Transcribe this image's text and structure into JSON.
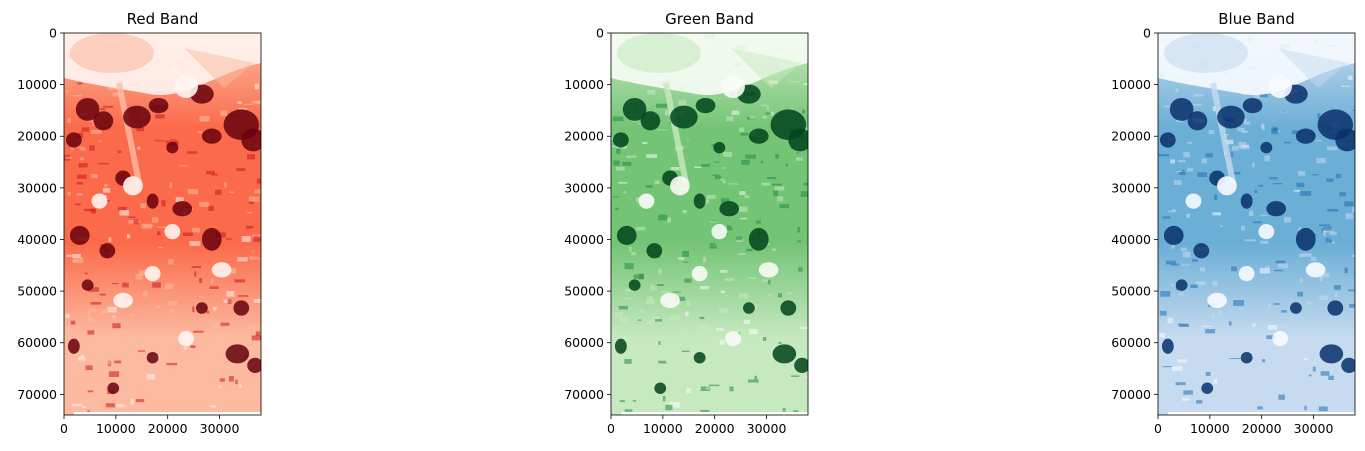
{
  "chart_data": [
    {
      "type": "heatmap",
      "title": "Red Band",
      "colormap": "Reds",
      "colors": [
        "#fff5f0",
        "#fcbba1",
        "#fb6a4a",
        "#cb181d",
        "#67000d"
      ],
      "xlim": [
        0,
        38000
      ],
      "ylim": [
        74000,
        0
      ],
      "x_ticks": [
        0,
        10000,
        20000,
        30000
      ],
      "y_ticks": [
        0,
        10000,
        20000,
        30000,
        40000,
        50000,
        60000,
        70000
      ],
      "x_tick_labels": [
        "0",
        "10000",
        "20000",
        "30000"
      ],
      "y_tick_labels": [
        "0",
        "10000",
        "20000",
        "30000",
        "40000",
        "50000",
        "60000",
        "70000"
      ]
    },
    {
      "type": "heatmap",
      "title": "Green Band",
      "colormap": "Greens",
      "colors": [
        "#f7fcf5",
        "#c7e9c0",
        "#74c476",
        "#238b45",
        "#00441b"
      ],
      "xlim": [
        0,
        38000
      ],
      "ylim": [
        74000,
        0
      ],
      "x_ticks": [
        0,
        10000,
        20000,
        30000
      ],
      "y_ticks": [
        0,
        10000,
        20000,
        30000,
        40000,
        50000,
        60000,
        70000
      ],
      "x_tick_labels": [
        "0",
        "10000",
        "20000",
        "30000"
      ],
      "y_tick_labels": [
        "0",
        "10000",
        "20000",
        "30000",
        "40000",
        "50000",
        "60000",
        "70000"
      ]
    },
    {
      "type": "heatmap",
      "title": "Blue Band",
      "colormap": "Blues",
      "colors": [
        "#f7fbff",
        "#c6dbef",
        "#6baed6",
        "#2171b5",
        "#08306b"
      ],
      "xlim": [
        0,
        38000
      ],
      "ylim": [
        74000,
        0
      ],
      "x_ticks": [
        0,
        10000,
        20000,
        30000
      ],
      "y_ticks": [
        0,
        10000,
        20000,
        30000,
        40000,
        50000,
        60000,
        70000
      ],
      "x_tick_labels": [
        "0",
        "10000",
        "20000",
        "30000"
      ],
      "y_tick_labels": [
        "0",
        "10000",
        "20000",
        "30000",
        "40000",
        "50000",
        "60000",
        "70000"
      ]
    }
  ]
}
